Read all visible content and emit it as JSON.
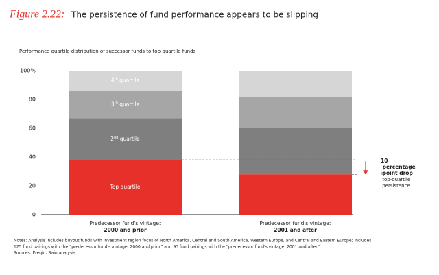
{
  "figure_label": "Figure 2.22:",
  "title": "The persistence of fund performance appears to be slipping",
  "chart_data": {
    "type": "stacked_bar",
    "subtitle": "Performance quartile distribution of successor funds to top-quartile funds",
    "category_prefix": "Predecessor fund's vintage:",
    "categories": [
      "2000 and prior",
      "2001 and after"
    ],
    "series": [
      {
        "name": "Top quartile",
        "color": "#e8302a",
        "values": [
          38,
          28
        ]
      },
      {
        "name": "2nd quartile",
        "color": "#7f7f7f",
        "values": [
          29,
          32
        ]
      },
      {
        "name": "3rd quartile",
        "color": "#a6a6a6",
        "values": [
          19,
          22
        ]
      },
      {
        "name": "4th quartile",
        "color": "#d6d6d6",
        "values": [
          14,
          18
        ]
      }
    ],
    "ylim": [
      0,
      100
    ],
    "yticks": [
      0,
      20,
      40,
      60,
      80,
      {
        "value": 100,
        "label": "100%"
      }
    ],
    "annotation": {
      "title": "10 percentage point drop",
      "text": "in top-quartile persistence"
    }
  },
  "notes": [
    "Notes: Analysis includes buyout funds with investment region focus of North America, Central and South America, Western Europe, and Central and Eastern Europe; includes",
    "125 fund pairings with the “predecessor fund's vintage: 2000 and prior” and 93 fund pairings with the “predecessor fund's vintage: 2001 and after”",
    "Sources: Preqin; Bain analysis"
  ]
}
